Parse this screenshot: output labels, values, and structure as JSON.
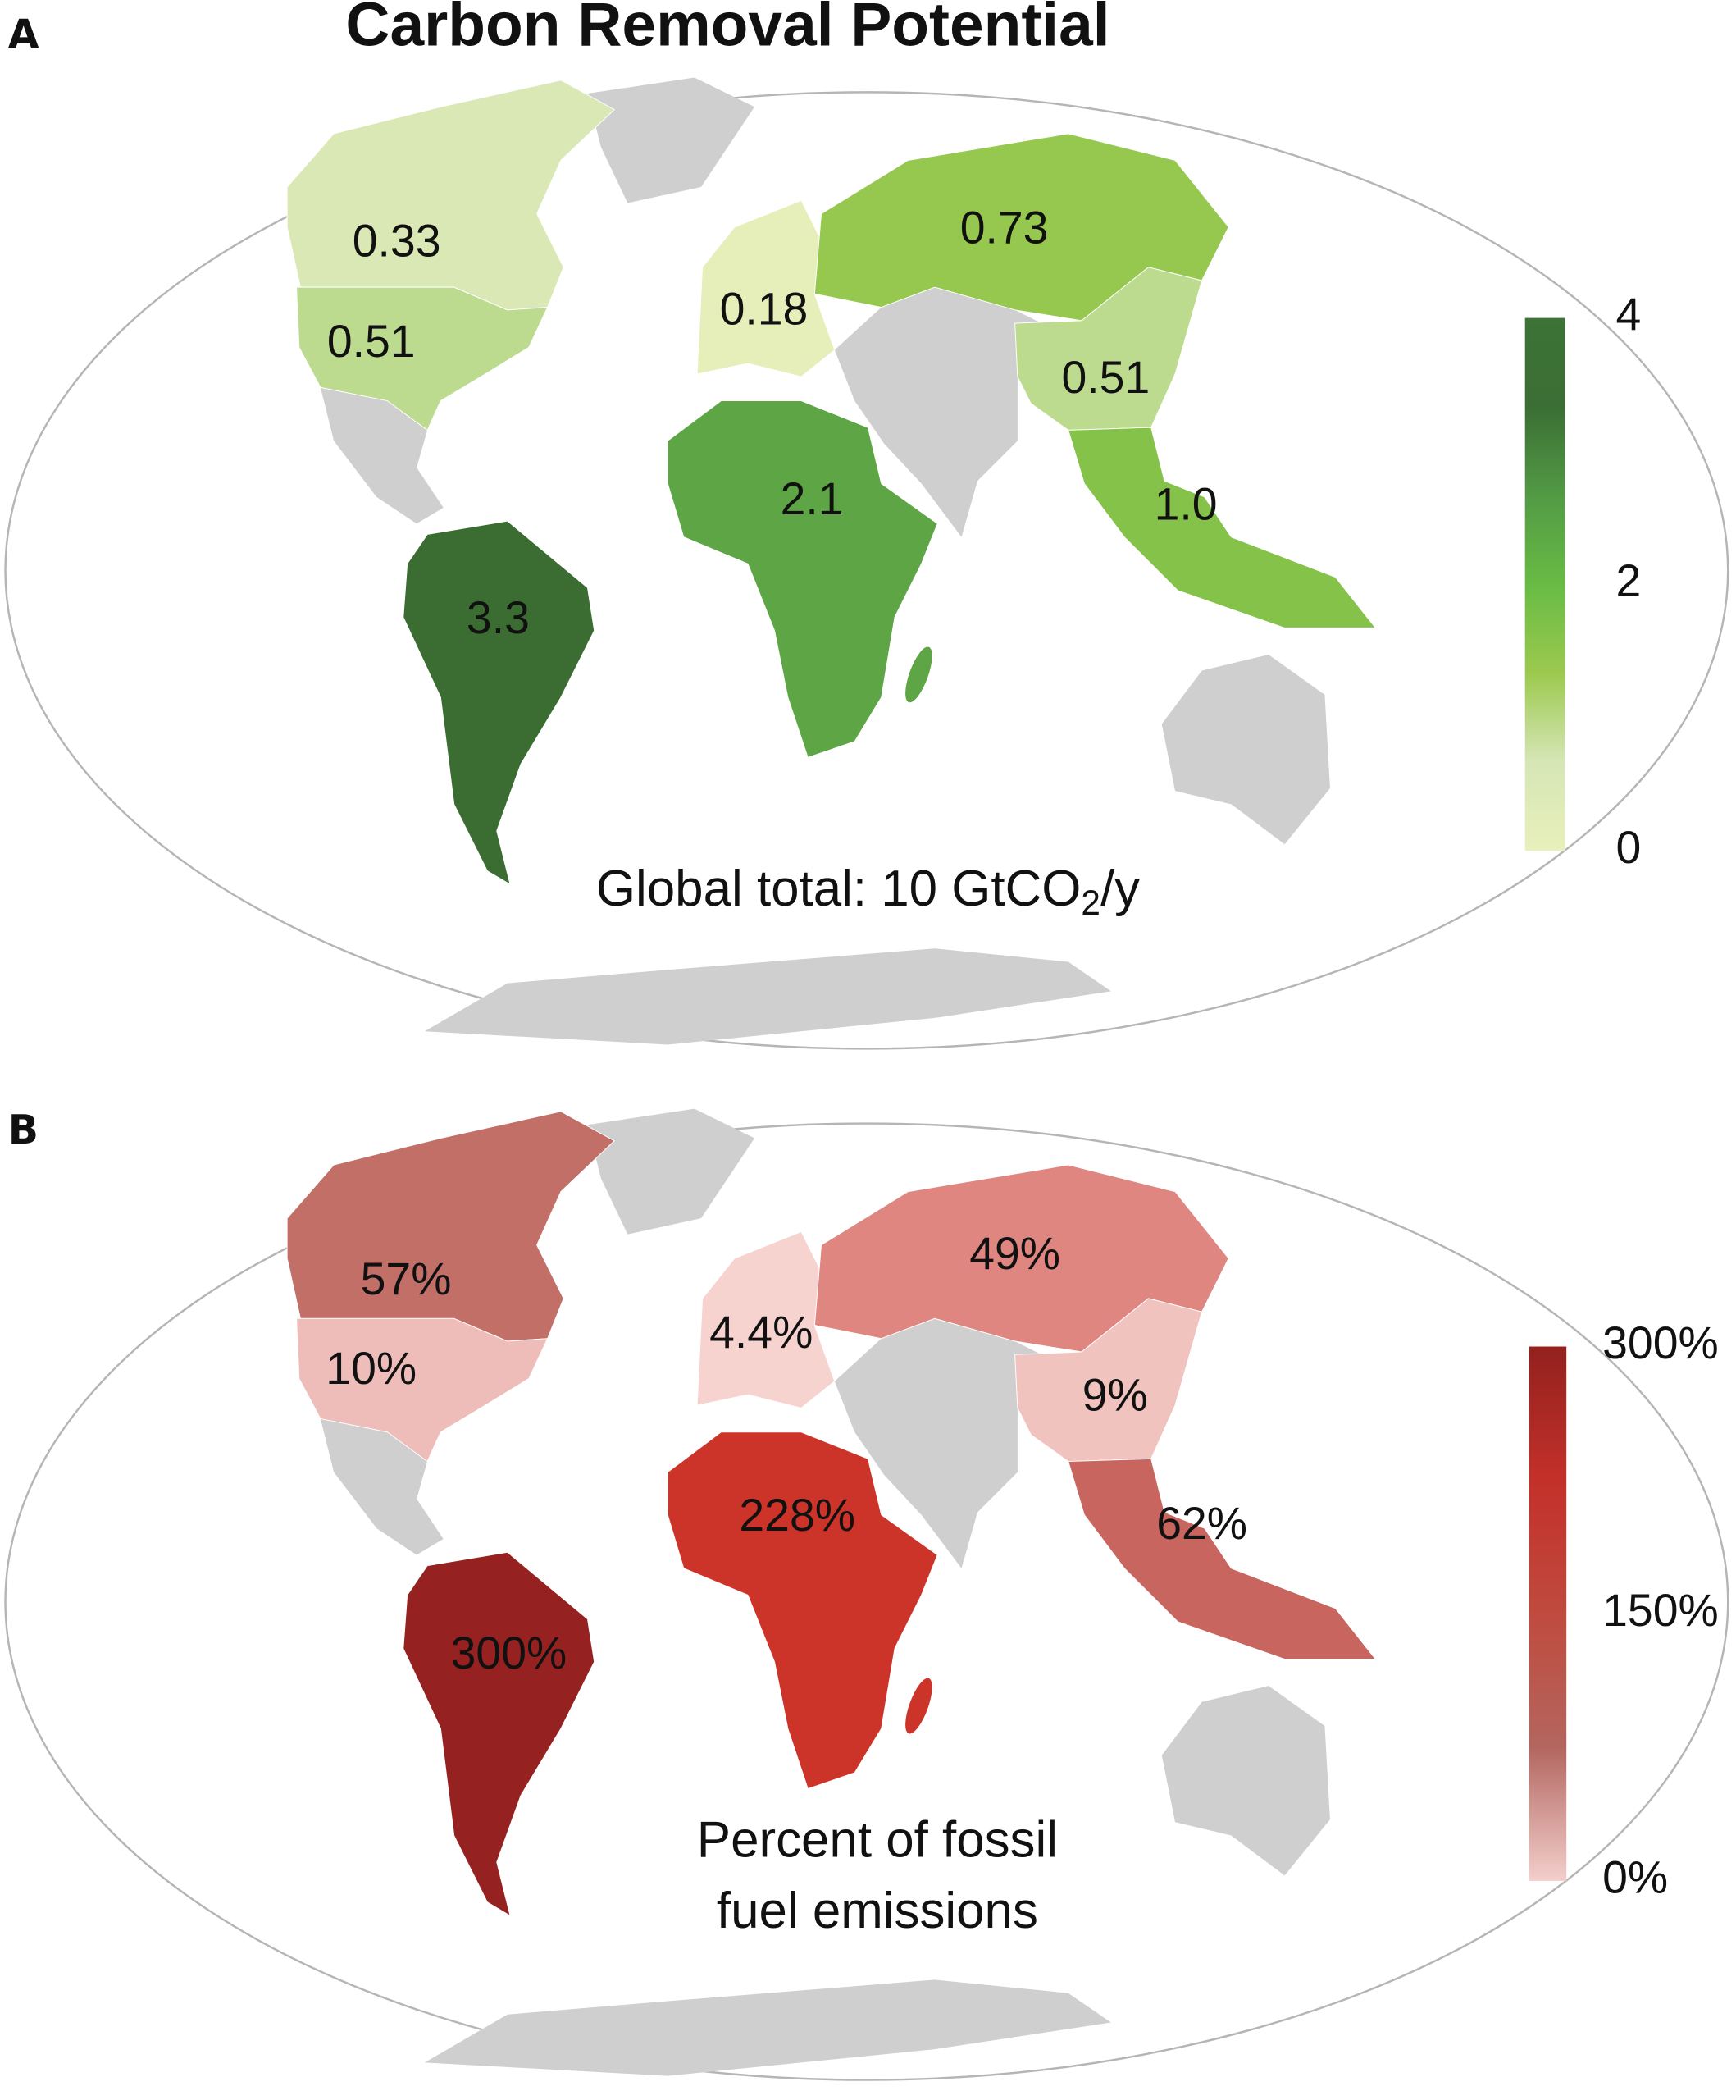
{
  "chart_data": [
    {
      "type": "choropleth-map",
      "panel_label": "A",
      "title": "Carbon Removal Potential",
      "note": "Global total: 10 GtCO",
      "note_sub": "2",
      "note_tail": "/y",
      "unit": "GtCO2/y",
      "colorbar": {
        "min": 0,
        "max": 4,
        "ticks": [
          "4",
          "2",
          "0"
        ],
        "colors": [
          "#e8f0bb",
          "#d6e6b6",
          "#9cc94f",
          "#67bb45",
          "#539a45",
          "#3b6e34",
          "#3d7336"
        ]
      },
      "regions": [
        {
          "name": "Canada",
          "value": 0.33,
          "label": "0.33",
          "color": "#d9e8b4"
        },
        {
          "name": "USA",
          "value": 0.51,
          "label": "0.51",
          "color": "#bcdb8f"
        },
        {
          "name": "Europe",
          "value": 0.18,
          "label": "0.18",
          "color": "#e6efba"
        },
        {
          "name": "Russia",
          "value": 0.73,
          "label": "0.73",
          "color": "#96c850"
        },
        {
          "name": "China",
          "value": 0.51,
          "label": "0.51",
          "color": "#bcdb8f"
        },
        {
          "name": "Southeast Asia",
          "value": 1.0,
          "label": "1.0",
          "color": "#84c24a"
        },
        {
          "name": "Africa",
          "value": 2.1,
          "label": "2.1",
          "color": "#5ea545"
        },
        {
          "name": "South America",
          "value": 3.3,
          "label": "3.3",
          "color": "#3b6d33"
        }
      ]
    },
    {
      "type": "choropleth-map",
      "panel_label": "B",
      "note_lines": [
        "Percent of fossil",
        "fuel emissions"
      ],
      "unit": "percent",
      "colorbar": {
        "min": 0,
        "max": 300,
        "ticks": [
          "300%",
          "150%",
          "0%"
        ],
        "colors": [
          "#f3cfcc",
          "#b3665f",
          "#c04a3e",
          "#c3302a",
          "#93211e"
        ]
      },
      "regions": [
        {
          "name": "Canada",
          "value": 57,
          "label": "57%",
          "color": "#c26f68"
        },
        {
          "name": "USA",
          "value": 10,
          "label": "10%",
          "color": "#efbdb9"
        },
        {
          "name": "Europe",
          "value": 4.4,
          "label": "4.4%",
          "color": "#f6d3cf"
        },
        {
          "name": "Russia",
          "value": 49,
          "label": "49%",
          "color": "#df8681"
        },
        {
          "name": "China",
          "value": 9,
          "label": "9%",
          "color": "#f0c3be"
        },
        {
          "name": "Southeast Asia",
          "value": 62,
          "label": "62%",
          "color": "#c7655e"
        },
        {
          "name": "Africa",
          "value": 228,
          "label": "228%",
          "color": "#cd3429"
        },
        {
          "name": "South America",
          "value": 300,
          "label": "300%",
          "color": "#952220"
        }
      ]
    }
  ],
  "colors": {
    "no_data": "#cfcfcf",
    "outline": "#b5b5b5"
  }
}
